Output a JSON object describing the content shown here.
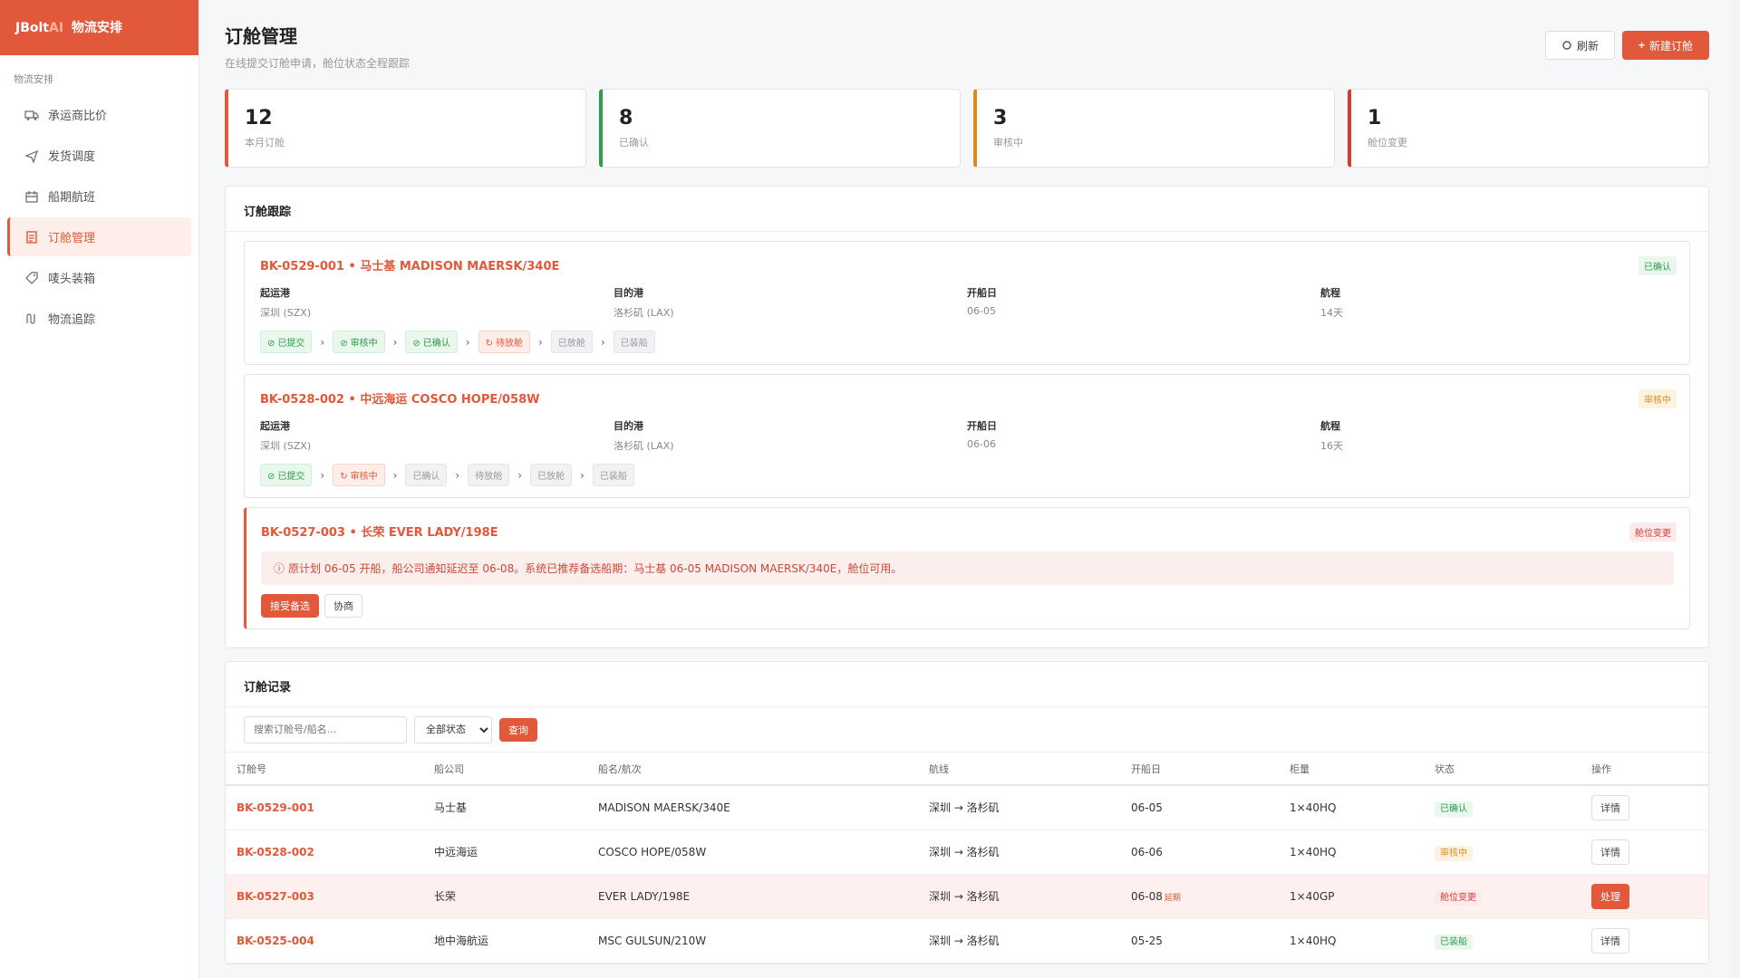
{
  "app": {
    "brand_main": "JBolt",
    "brand_ai": "AI",
    "brand_sub": "物流安排"
  },
  "sidebar": {
    "group_label": "物流安排",
    "items": [
      {
        "label": "承运商比价",
        "icon": "truck-icon",
        "active": false
      },
      {
        "label": "发货调度",
        "icon": "send-icon",
        "active": false
      },
      {
        "label": "船期航班",
        "icon": "calendar-icon",
        "active": false
      },
      {
        "label": "订舱管理",
        "icon": "document-icon",
        "active": true
      },
      {
        "label": "唛头装箱",
        "icon": "tag-icon",
        "active": false
      },
      {
        "label": "物流追踪",
        "icon": "route-icon",
        "active": false
      }
    ]
  },
  "header": {
    "title": "订舱管理",
    "subtitle": "在线提交订舱申请，舱位状态全程跟踪",
    "refresh_label": "刷新",
    "new_label": "新建订舱"
  },
  "stats": [
    {
      "value": "12",
      "label": "本月订舱",
      "color": "#e2583a"
    },
    {
      "value": "8",
      "label": "已确认",
      "color": "#2e9b4d"
    },
    {
      "value": "3",
      "label": "审核中",
      "color": "#e08a1e"
    },
    {
      "value": "1",
      "label": "舱位变更",
      "color": "#d63b2f"
    }
  ],
  "tracking": {
    "title": "订舱跟踪",
    "field_labels": {
      "origin": "起运港",
      "dest": "目的港",
      "sail": "开船日",
      "voyage": "航程"
    },
    "cards": [
      {
        "title": "BK-0529-001 • 马士基 MADISON MAERSK/340E",
        "badge": "已确认",
        "origin": "深圳 (SZX)",
        "dest": "洛杉矶 (LAX)",
        "sail": "06-05",
        "voyage": "14天",
        "steps": [
          {
            "label": "已提交",
            "state": "done"
          },
          {
            "label": "审核中",
            "state": "done"
          },
          {
            "label": "已确认",
            "state": "done"
          },
          {
            "label": "待放舱",
            "state": "cur"
          },
          {
            "label": "已放舱",
            "state": "todo"
          },
          {
            "label": "已装船",
            "state": "todo"
          }
        ]
      },
      {
        "title": "BK-0528-002 • 中远海运 COSCO HOPE/058W",
        "badge": "审核中",
        "origin": "深圳 (SZX)",
        "dest": "洛杉矶 (LAX)",
        "sail": "06-06",
        "voyage": "16天",
        "steps": [
          {
            "label": "已提交",
            "state": "done"
          },
          {
            "label": "审核中",
            "state": "cur"
          },
          {
            "label": "已确认",
            "state": "todo"
          },
          {
            "label": "待放舱",
            "state": "todo"
          },
          {
            "label": "已放舱",
            "state": "todo"
          },
          {
            "label": "已装船",
            "state": "todo"
          }
        ]
      }
    ],
    "alert_card": {
      "title": "BK-0527-003 • 长荣 EVER LADY/198E",
      "badge": "舱位变更",
      "message": "原计划 06-05 开船，船公司通知延迟至 06-08。系统已推荐备选船期：马士基 06-05 MADISON MAERSK/340E，舱位可用。",
      "accept_label": "接受备选",
      "negotiate_label": "协商"
    }
  },
  "records": {
    "title": "订舱记录",
    "search_placeholder": "搜索订舱号/船名...",
    "status_filter": "全部状态",
    "query_label": "查询",
    "columns": [
      "订舱号",
      "船公司",
      "船名/航次",
      "航线",
      "开船日",
      "柜量",
      "状态",
      "操作"
    ],
    "rows": [
      {
        "code": "BK-0529-001",
        "carrier": "马士基",
        "vessel": "MADISON MAERSK/340E",
        "route": "深圳 → 洛杉矶",
        "sail": "06-05",
        "delay": "",
        "qty": "1×40HQ",
        "status": "已确认",
        "status_color": "#2e9b4d",
        "status_bg": "#e9f7ed",
        "op": "详情",
        "highlight": false
      },
      {
        "code": "BK-0528-002",
        "carrier": "中远海运",
        "vessel": "COSCO HOPE/058W",
        "route": "深圳 → 洛杉矶",
        "sail": "06-06",
        "delay": "",
        "qty": "1×40HQ",
        "status": "审核中",
        "status_color": "#e08a1e",
        "status_bg": "#fdf3e3",
        "op": "详情",
        "highlight": false
      },
      {
        "code": "BK-0527-003",
        "carrier": "长荣",
        "vessel": "EVER LADY/198E",
        "route": "深圳 → 洛杉矶",
        "sail": "06-08",
        "delay": "延期",
        "qty": "1×40GP",
        "status": "舱位变更",
        "status_color": "#d63b2f",
        "status_bg": "#fdeaea",
        "op": "处理",
        "highlight": true
      },
      {
        "code": "BK-0525-004",
        "carrier": "地中海航运",
        "vessel": "MSC GULSUN/210W",
        "route": "深圳 → 洛杉矶",
        "sail": "05-25",
        "delay": "",
        "qty": "1×40HQ",
        "status": "已装船",
        "status_color": "#2e9b4d",
        "status_bg": "#e9f7ed",
        "op": "详情",
        "highlight": false
      }
    ]
  }
}
